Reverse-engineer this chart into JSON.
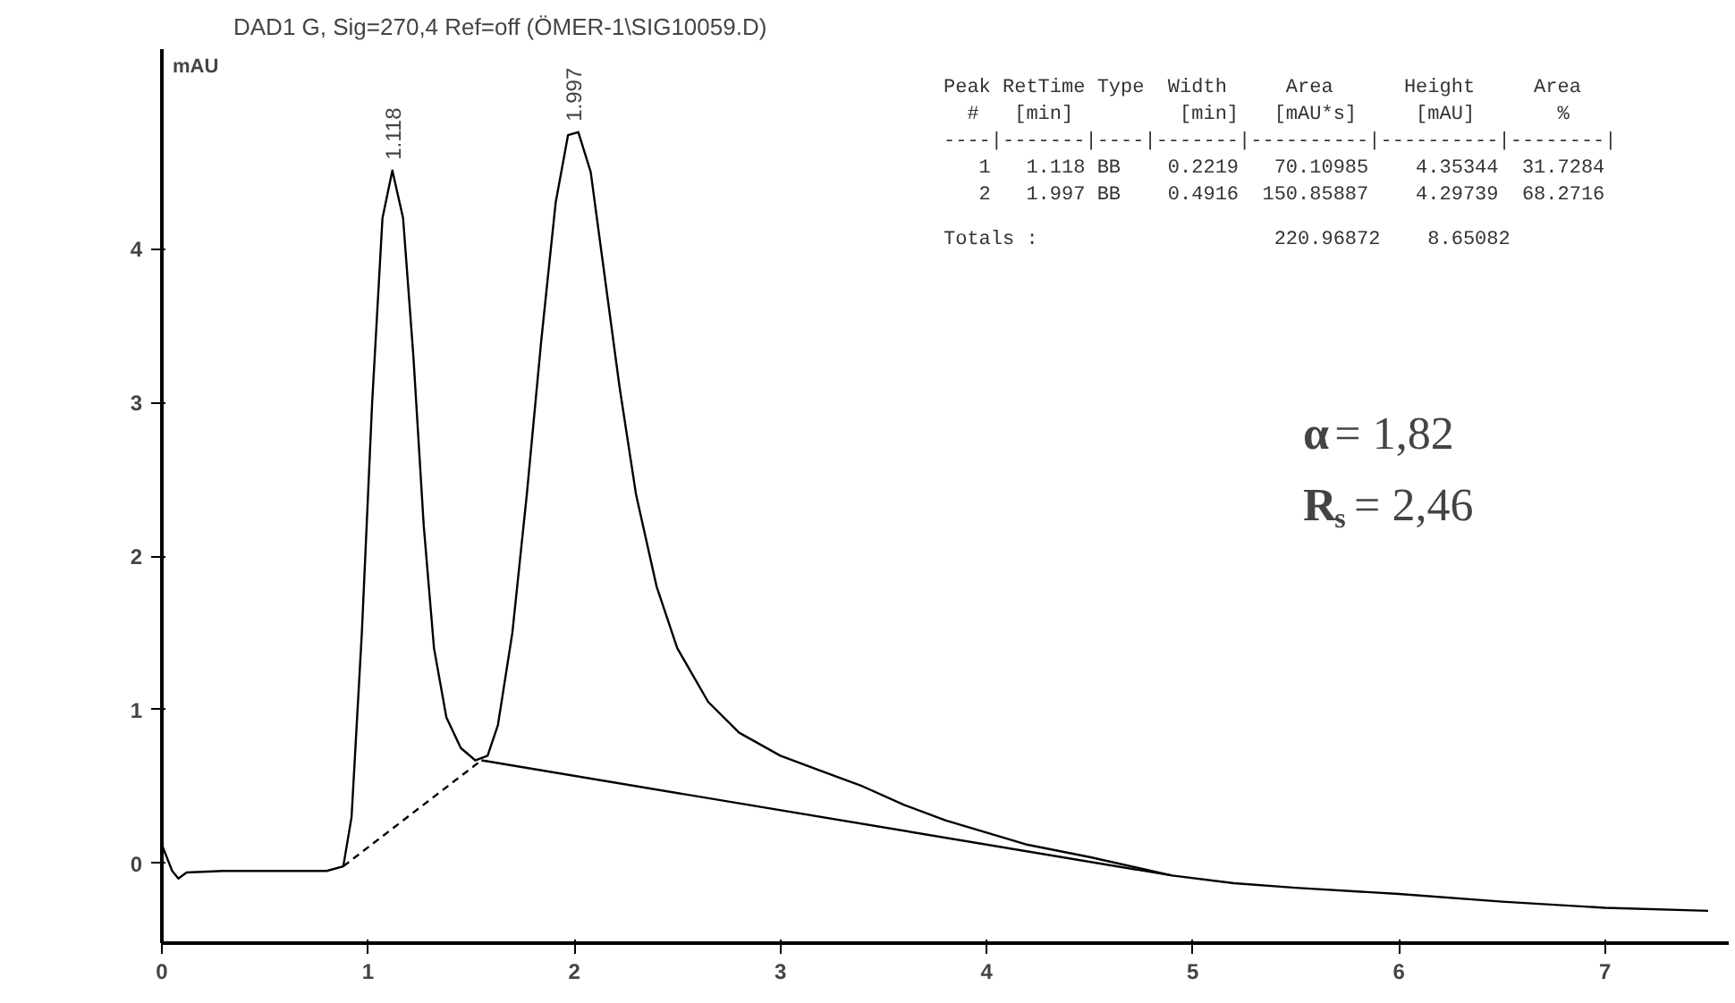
{
  "chart_data": {
    "type": "line",
    "title": "DAD1 G, Sig=270,4 Ref=off (ÖMER-1\\SIG10059.D)",
    "ylabel": "mAU",
    "xlim": [
      0,
      7.6
    ],
    "ylim": [
      -0.52,
      5.3
    ],
    "xticks": [
      0,
      1,
      2,
      3,
      4,
      5,
      6,
      7
    ],
    "yticks": [
      0,
      1,
      2,
      3,
      4
    ],
    "grid": false,
    "series": [
      {
        "color": "#000000",
        "line_style": "solid",
        "x": [
          0.0,
          0.05,
          0.08,
          0.12,
          0.3,
          0.8,
          0.88,
          0.92,
          0.97,
          1.02,
          1.07,
          1.118,
          1.17,
          1.22,
          1.27,
          1.32,
          1.38,
          1.45,
          1.52,
          1.58,
          1.63,
          1.7,
          1.77,
          1.84,
          1.91,
          1.97,
          2.02,
          2.08,
          2.15,
          2.22,
          2.3,
          2.4,
          2.5,
          2.65,
          2.8,
          3.0,
          3.2,
          3.4,
          3.6,
          3.8,
          4.0,
          4.2,
          4.5,
          4.9,
          5.2,
          5.5,
          6.0,
          6.5,
          7.0,
          7.5
        ],
        "values": [
          0.12,
          -0.05,
          -0.1,
          -0.06,
          -0.05,
          -0.05,
          -0.02,
          0.3,
          1.5,
          3.0,
          4.2,
          4.51,
          4.2,
          3.3,
          2.2,
          1.4,
          0.95,
          0.75,
          0.67,
          0.7,
          0.9,
          1.5,
          2.4,
          3.4,
          4.3,
          4.74,
          4.76,
          4.5,
          3.8,
          3.1,
          2.4,
          1.8,
          1.4,
          1.05,
          0.85,
          0.7,
          0.6,
          0.5,
          0.38,
          0.28,
          0.2,
          0.12,
          0.04,
          -0.08,
          -0.13,
          -0.16,
          -0.2,
          -0.25,
          -0.29,
          -0.31
        ]
      },
      {
        "color": "#000000",
        "line_style": "dashed",
        "x": [
          0.88,
          1.55
        ],
        "values": [
          -0.02,
          0.67
        ]
      },
      {
        "color": "#000000",
        "line_style": "solid",
        "x": [
          1.55,
          4.9
        ],
        "values": [
          0.67,
          -0.08
        ]
      }
    ],
    "annotations": [
      {
        "text": "1.118",
        "x": 1.118,
        "y": 4.51
      },
      {
        "text": "1.997",
        "x": 1.997,
        "y": 4.76
      },
      "Peak RetTime Type  Width     Area      Height     Area",
      "  #   [min]         [min]   [mAU*s]     [mAU]       %",
      "----|-------|----|-------|----------|----------|--------|",
      "   1   1.118 BB    0.2219   70.10985    4.35344  31.7284",
      "   2   1.997 BB    0.4916  150.85887    4.29739  68.2716",
      "Totals :                    220.96872    8.65082",
      "α= 1,82",
      "R$_{s}$= 2,46"
    ]
  }
}
